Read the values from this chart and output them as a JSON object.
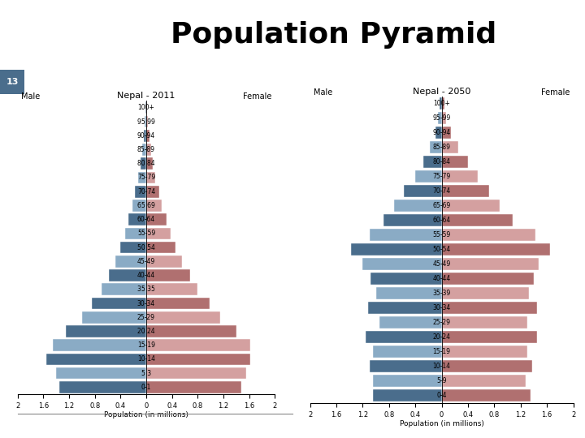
{
  "title": "Population Pyramid",
  "slide_number": "13",
  "pyramid1": {
    "title": "Nepal - 2011",
    "age_groups": [
      "0-1",
      "5 3",
      "10-14",
      "15-19",
      "20 24",
      "25-29",
      "30-34",
      "35 35",
      "40-44",
      "45-49",
      "50 54",
      "55-59",
      "60-64",
      "65 69",
      "70-74",
      "75-79",
      "80 84",
      "85-89",
      "90-94",
      "95 99",
      "100+"
    ],
    "male": [
      1.35,
      1.4,
      1.55,
      1.45,
      1.25,
      1.0,
      0.85,
      0.7,
      0.58,
      0.48,
      0.4,
      0.33,
      0.28,
      0.22,
      0.18,
      0.12,
      0.09,
      0.06,
      0.04,
      0.02,
      0.01
    ],
    "female": [
      1.48,
      1.55,
      1.62,
      1.62,
      1.4,
      1.15,
      0.98,
      0.8,
      0.68,
      0.55,
      0.45,
      0.38,
      0.32,
      0.24,
      0.2,
      0.14,
      0.1,
      0.07,
      0.05,
      0.02,
      0.01
    ],
    "xlim": 2.0,
    "xlabel": "Population (in millions)"
  },
  "pyramid2": {
    "title": "Nepal - 2050",
    "age_groups": [
      "0-4",
      "5-9",
      "10-14",
      "15-19",
      "20-24",
      "25-29",
      "30-34",
      "35-39",
      "40-44",
      "45-49",
      "50-54",
      "55-59",
      "60-64",
      "65-69",
      "70-74",
      "75-79",
      "80-84",
      "85-89",
      "90-94",
      "95-99",
      "100+"
    ],
    "male": [
      1.05,
      1.05,
      1.1,
      1.05,
      1.15,
      0.95,
      1.12,
      1.0,
      1.08,
      1.2,
      1.38,
      1.1,
      0.88,
      0.72,
      0.58,
      0.4,
      0.28,
      0.18,
      0.1,
      0.06,
      0.03
    ],
    "female": [
      1.35,
      1.28,
      1.38,
      1.3,
      1.45,
      1.3,
      1.45,
      1.32,
      1.4,
      1.48,
      1.65,
      1.42,
      1.08,
      0.88,
      0.72,
      0.55,
      0.4,
      0.25,
      0.14,
      0.07,
      0.04
    ],
    "xlim": 2.0,
    "xlabel": "Population (in millions)"
  },
  "male_dark": "#4a6d8c",
  "male_light": "#8aabc5",
  "female_dark": "#b07070",
  "female_light": "#d4a0a0",
  "header_bg": "#b8c8d8",
  "slide_num_bg": "#4a6d8c",
  "background": "#ffffff",
  "title_fontsize": 26,
  "axis_fontsize": 6,
  "label_fontsize": 5.5
}
